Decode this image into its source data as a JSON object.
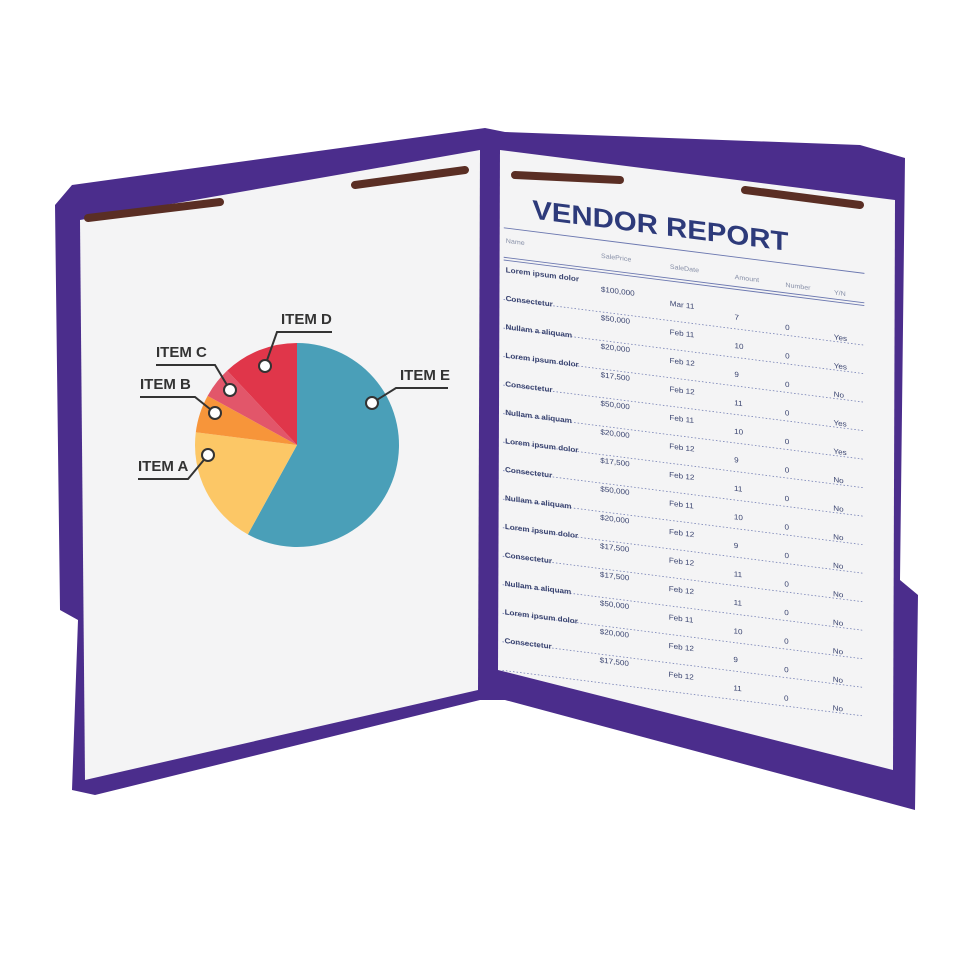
{
  "chart_data": {
    "type": "pie",
    "categories": [
      "ITEM E",
      "ITEM A",
      "ITEM B",
      "ITEM C",
      "ITEM D"
    ],
    "values": [
      58,
      19,
      6,
      5,
      12
    ],
    "colors": [
      "#4a9fb8",
      "#fcc766",
      "#f7953a",
      "#e2566a",
      "#e0364a"
    ]
  },
  "report": {
    "title": "VENDOR REPORT",
    "columns": [
      "Name",
      "SalePrice",
      "SaleDate",
      "Amount",
      "Number",
      "Y/N"
    ],
    "rows": [
      [
        "Lorem ipsum dolor",
        "$100,000",
        "Mar 11",
        "7",
        "0",
        "Yes"
      ],
      [
        "Consectetur",
        "$50,000",
        "Feb 11",
        "10",
        "0",
        "Yes"
      ],
      [
        "Nullam a aliquam",
        "$20,000",
        "Feb 12",
        "9",
        "0",
        "No"
      ],
      [
        "Lorem ipsum dolor",
        "$17,500",
        "Feb 12",
        "11",
        "0",
        "Yes"
      ],
      [
        "Consectetur",
        "$50,000",
        "Feb 11",
        "10",
        "0",
        "Yes"
      ],
      [
        "Nullam a aliquam",
        "$20,000",
        "Feb 12",
        "9",
        "0",
        "No"
      ],
      [
        "Lorem ipsum dolor",
        "$17,500",
        "Feb 12",
        "11",
        "0",
        "No"
      ],
      [
        "Consectetur",
        "$50,000",
        "Feb 11",
        "10",
        "0",
        "No"
      ],
      [
        "Nullam a aliquam",
        "$20,000",
        "Feb 12",
        "9",
        "0",
        "No"
      ],
      [
        "Lorem ipsum dolor",
        "$17,500",
        "Feb 12",
        "11",
        "0",
        "No"
      ],
      [
        "Consectetur",
        "$17,500",
        "Feb 12",
        "11",
        "0",
        "No"
      ],
      [
        "Nullam a aliquam",
        "$50,000",
        "Feb 11",
        "10",
        "0",
        "No"
      ],
      [
        "Lorem ipsum dolor",
        "$20,000",
        "Feb 12",
        "9",
        "0",
        "No"
      ],
      [
        "Consectetur",
        "$17,500",
        "Feb 12",
        "11",
        "0",
        "No"
      ]
    ]
  }
}
